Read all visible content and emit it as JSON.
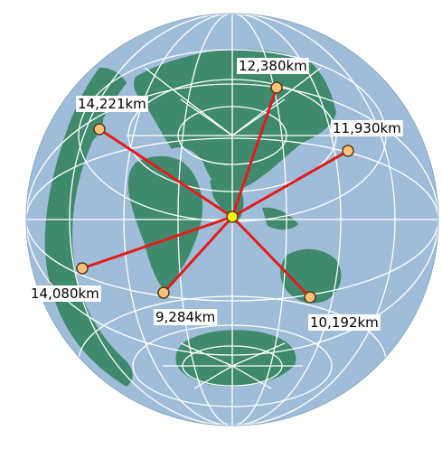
{
  "colors": {
    "ocean": "#9fbdd8",
    "land": "#3f8a6d",
    "grid": "#ffffff",
    "route": "#e51c1c",
    "destination_marker": "#f6c27a",
    "origin_marker": "#ffff00",
    "marker_outline": "#5a3a1a",
    "label_text": "#000000",
    "label_background": "#ffffff"
  },
  "center_marker": {
    "name": "origin-marker",
    "icon": "yellow-dot"
  },
  "destinations": [
    {
      "id": "north",
      "distance_label": "12,380km"
    },
    {
      "id": "northwest",
      "distance_label": "14,221km"
    },
    {
      "id": "northeast",
      "distance_label": "11,930km"
    },
    {
      "id": "west",
      "distance_label": "14,080km"
    },
    {
      "id": "southwest",
      "distance_label": "9,284km"
    },
    {
      "id": "southeast",
      "distance_label": "10,192km"
    }
  ]
}
